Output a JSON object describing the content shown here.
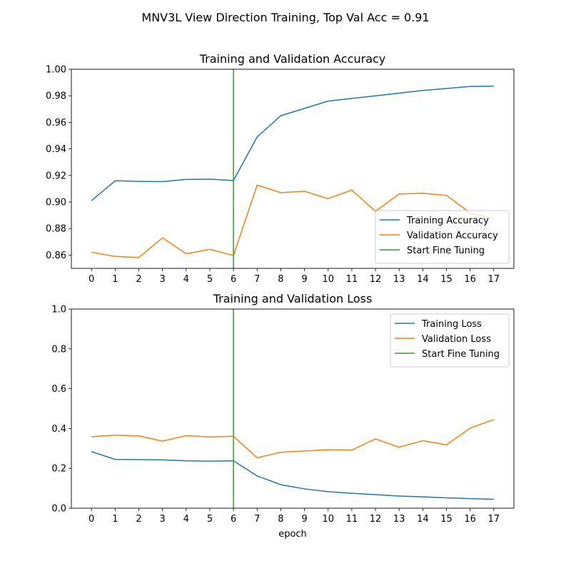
{
  "figure": {
    "suptitle": "MNV3L View Direction Training, Top Val Acc = 0.91"
  },
  "chart_data": [
    {
      "type": "line",
      "title": "Training and Validation Accuracy",
      "xlabel": "",
      "ylabel": "",
      "x": [
        0,
        1,
        2,
        3,
        4,
        5,
        6,
        7,
        8,
        9,
        10,
        11,
        12,
        13,
        14,
        15,
        16,
        17
      ],
      "xticks": [
        "0",
        "1",
        "2",
        "3",
        "4",
        "5",
        "6",
        "7",
        "8",
        "9",
        "10",
        "11",
        "12",
        "13",
        "14",
        "15",
        "16",
        "17"
      ],
      "ylim": [
        0.85,
        1.0
      ],
      "yticks": [
        "0.86",
        "0.88",
        "0.90",
        "0.92",
        "0.94",
        "0.96",
        "0.98",
        "1.00"
      ],
      "ytick_values": [
        0.86,
        0.88,
        0.9,
        0.92,
        0.94,
        0.96,
        0.98,
        1.0
      ],
      "series": [
        {
          "name": "Training Accuracy",
          "color": "#1f77b4",
          "values": [
            0.901,
            0.916,
            0.9155,
            0.9153,
            0.917,
            0.9172,
            0.9162,
            0.949,
            0.965,
            0.9705,
            0.976,
            0.978,
            0.98,
            0.982,
            0.984,
            0.9855,
            0.987,
            0.9873
          ]
        },
        {
          "name": "Validation Accuracy",
          "color": "#ff7f0e",
          "values": [
            0.8622,
            0.859,
            0.8582,
            0.873,
            0.861,
            0.8643,
            0.8597,
            0.9127,
            0.907,
            0.9081,
            0.9025,
            0.909,
            0.893,
            0.906,
            0.9066,
            0.905,
            0.8918,
            0.8875
          ]
        }
      ],
      "vline": {
        "name": "Start Fine Tuning",
        "x": 6,
        "color": "#2ca02c"
      },
      "legend": "lower-right",
      "grid": false
    },
    {
      "type": "line",
      "title": "Training and Validation Loss",
      "xlabel": "epoch",
      "ylabel": "",
      "x": [
        0,
        1,
        2,
        3,
        4,
        5,
        6,
        7,
        8,
        9,
        10,
        11,
        12,
        13,
        14,
        15,
        16,
        17
      ],
      "xticks": [
        "0",
        "1",
        "2",
        "3",
        "4",
        "5",
        "6",
        "7",
        "8",
        "9",
        "10",
        "11",
        "12",
        "13",
        "14",
        "15",
        "16",
        "17"
      ],
      "ylim": [
        0.0,
        1.0
      ],
      "yticks": [
        "0.0",
        "0.2",
        "0.4",
        "0.6",
        "0.8",
        "1.0"
      ],
      "ytick_values": [
        0.0,
        0.2,
        0.4,
        0.6,
        0.8,
        1.0
      ],
      "series": [
        {
          "name": "Training Loss",
          "color": "#1f77b4",
          "values": [
            0.284,
            0.245,
            0.244,
            0.243,
            0.238,
            0.236,
            0.238,
            0.162,
            0.118,
            0.097,
            0.083,
            0.075,
            0.068,
            0.061,
            0.057,
            0.052,
            0.048,
            0.045
          ]
        },
        {
          "name": "Validation Loss",
          "color": "#ff7f0e",
          "values": [
            0.359,
            0.367,
            0.363,
            0.337,
            0.364,
            0.358,
            0.361,
            0.253,
            0.281,
            0.287,
            0.294,
            0.292,
            0.348,
            0.306,
            0.339,
            0.318,
            0.402,
            0.445
          ]
        }
      ],
      "vline": {
        "name": "Start Fine Tuning",
        "x": 6,
        "color": "#2ca02c"
      },
      "legend": "upper-right",
      "grid": false
    }
  ]
}
